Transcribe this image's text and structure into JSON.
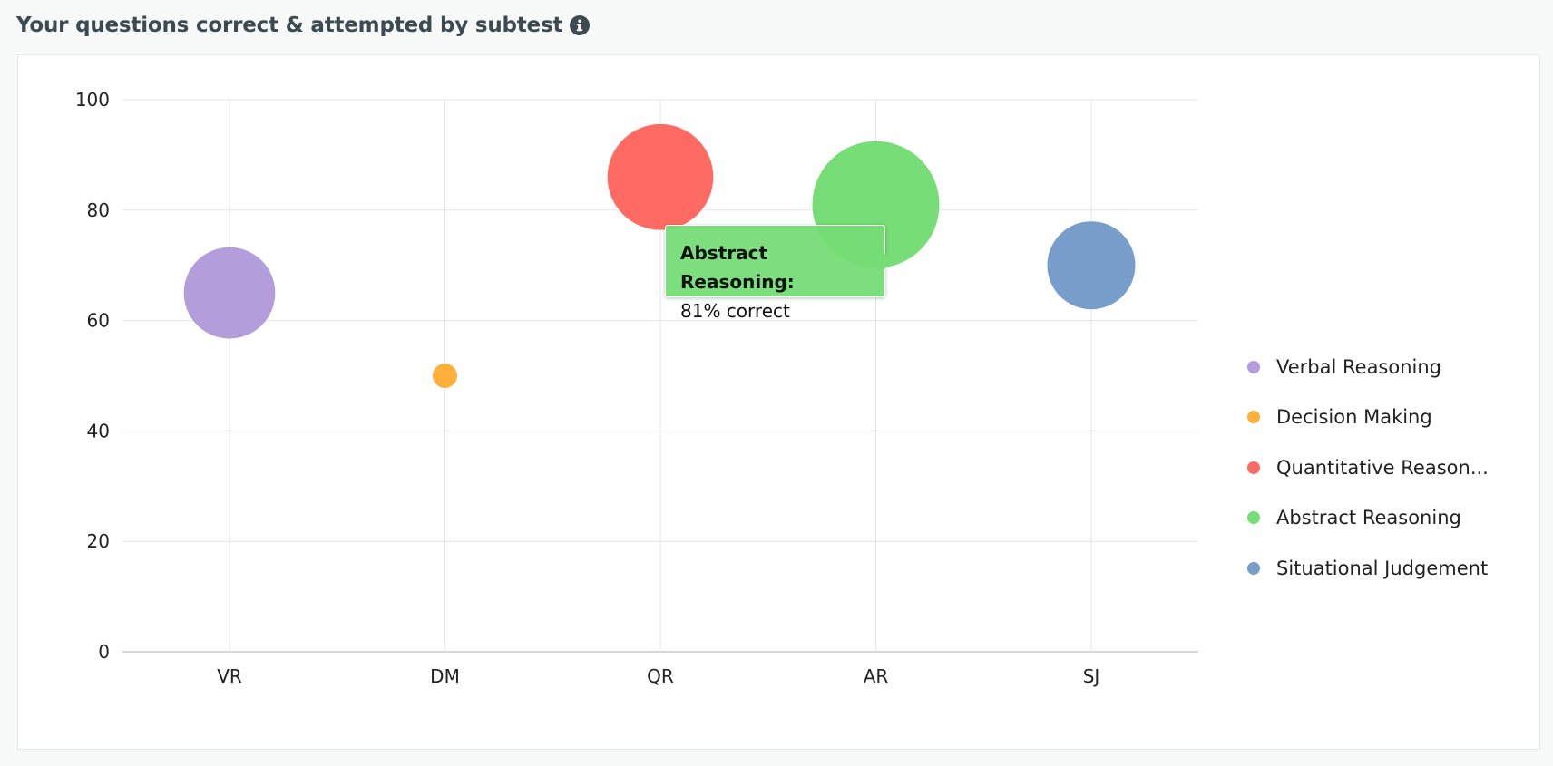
{
  "header": {
    "title": "Your questions correct & attempted by subtest",
    "info_icon": "info-circle-icon"
  },
  "chart_data": {
    "type": "bubble",
    "title": "",
    "xlabel": "",
    "ylabel": "",
    "categories": [
      "VR",
      "DM",
      "QR",
      "AR",
      "SJ"
    ],
    "ylim": [
      0,
      100
    ],
    "yticks": [
      0,
      20,
      40,
      60,
      80,
      100
    ],
    "grid": true,
    "series": [
      {
        "name": "Verbal Reasoning",
        "x": "VR",
        "y": 65,
        "size": 0.82,
        "color": "#b39ddb"
      },
      {
        "name": "Decision Making",
        "x": "DM",
        "y": 50,
        "size": 0.22,
        "color": "#ffb03b"
      },
      {
        "name": "Quantitative Reason...",
        "x": "QR",
        "y": 86,
        "size": 0.95,
        "color": "#ff6b63"
      },
      {
        "name": "Abstract Reasoning",
        "x": "AR",
        "y": 81,
        "size": 1.14,
        "color": "#77dd77"
      },
      {
        "name": "Situational Judgement",
        "x": "SJ",
        "y": 70,
        "size": 0.79,
        "color": "#779ecb"
      }
    ],
    "legend_position": "right"
  },
  "tooltip": {
    "title": "Abstract Reasoning:",
    "value": "81% correct"
  }
}
